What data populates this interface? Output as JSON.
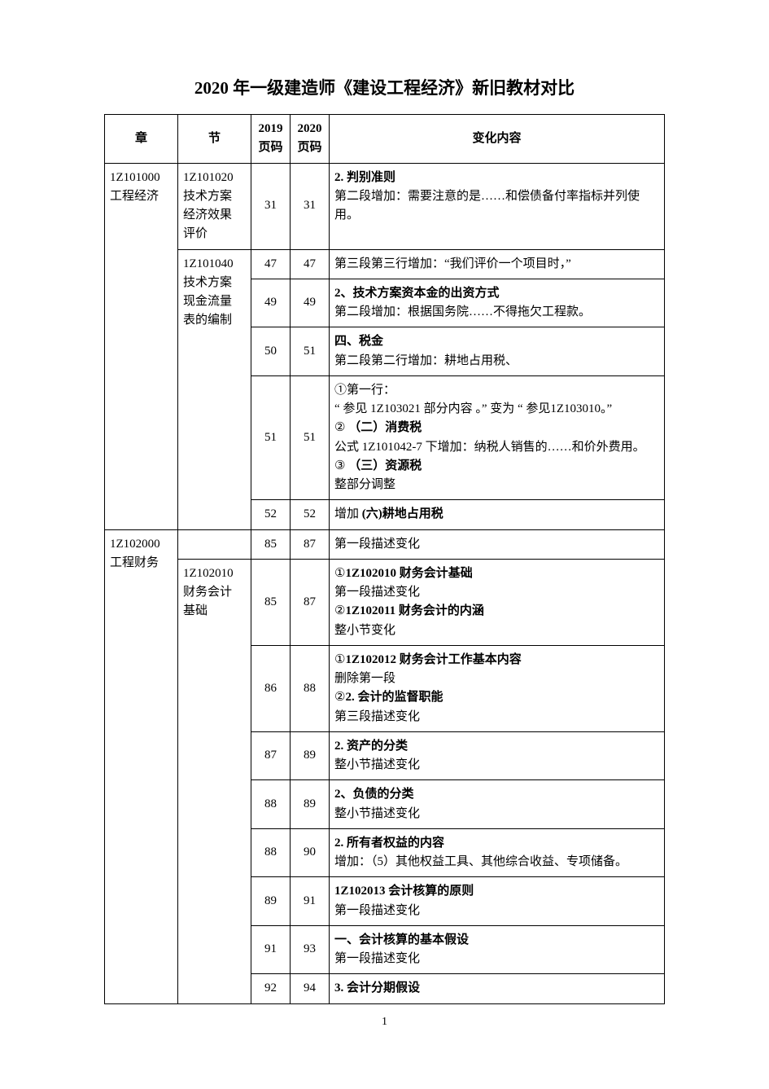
{
  "title": "2020 年一级建造师《建设工程经济》新旧教材对比",
  "headers": {
    "chapter": "章",
    "section": "节",
    "page2019": "2019\n页码",
    "page2020": "2020\n页码",
    "change": "变化内容"
  },
  "page_number": "1",
  "rows": [
    {
      "chapter": "1Z101000\n工程经济",
      "chapter_rowspan": 6,
      "section": "1Z101020\n技术方案\n经济效果\n评价",
      "section_rowspan": 1,
      "p19": "31",
      "p20": "31",
      "change_html": "<span class='b'>2. 判别准则</span><br>第二段增加：需要注意的是……和偿债备付率指标并列使用。"
    },
    {
      "section": "1Z101040\n技术方案\n现金流量\n表的编制",
      "section_rowspan": 5,
      "p19": "47",
      "p20": "47",
      "change_html": "第三段第三行增加：“我们评价一个项目时，”"
    },
    {
      "p19": "49",
      "p20": "49",
      "change_html": "<span class='b'>2、技术方案资本金的出资方式</span><br>第二段增加：根据国务院……不得拖欠工程款。"
    },
    {
      "p19": "50",
      "p20": "51",
      "change_html": "<span class='b'>四、税金</span><br>第二段第二行增加：耕地占用税、"
    },
    {
      "p19": "51",
      "p20": "51",
      "change_html": "①第一行：<br>“ 参见 1Z103021 部分内容 。” 变为 “ 参见1Z103010。”<br>② <span class='b'>（二）消费税</span><br>公式 1Z101042-7 下增加：纳税人销售的……和价外费用。<br>③ <span class='b'>（三）资源税</span><br>整部分调整"
    },
    {
      "p19": "52",
      "p20": "52",
      "change_html": "增加 <span class='b'>(六)耕地占用税</span>"
    },
    {
      "chapter": "1Z102000\n工程财务",
      "chapter_rowspan": 9,
      "section": "",
      "section_rowspan": 1,
      "p19": "85",
      "p20": "87",
      "change_html": "第一段描述变化"
    },
    {
      "section": "1Z102010\n财务会计\n基础",
      "section_rowspan": 8,
      "p19": "85",
      "p20": "87",
      "change_html": "①<span class='b'>1Z102010 财务会计基础</span><br>第一段描述变化<br>②<span class='b'>1Z102011 财务会计的内涵</span><br>整小节变化"
    },
    {
      "p19": "86",
      "p20": "88",
      "change_html": "①<span class='b'>1Z102012 财务会计工作基本内容</span><br>删除第一段<br>②<span class='b'>2. 会计的监督职能</span><br>第三段描述变化"
    },
    {
      "p19": "87",
      "p20": "89",
      "change_html": "<span class='b'>2. 资产的分类</span><br>整小节描述变化"
    },
    {
      "p19": "88",
      "p20": "89",
      "change_html": "<span class='b'>2、负债的分类</span><br>整小节描述变化"
    },
    {
      "p19": "88",
      "p20": "90",
      "change_html": "<span class='b'>2. 所有者权益的内容</span><br>增加：（5）其他权益工具、其他综合收益、专项储备。"
    },
    {
      "p19": "89",
      "p20": "91",
      "change_html": "<span class='b'>1Z102013 会计核算的原则</span><br>第一段描述变化"
    },
    {
      "p19": "91",
      "p20": "93",
      "change_html": "<span class='b'>一、会计核算的基本假设</span><br>第一段描述变化"
    },
    {
      "p19": "92",
      "p20": "94",
      "change_html": "<span class='b'>3. 会计分期假设</span>"
    }
  ]
}
